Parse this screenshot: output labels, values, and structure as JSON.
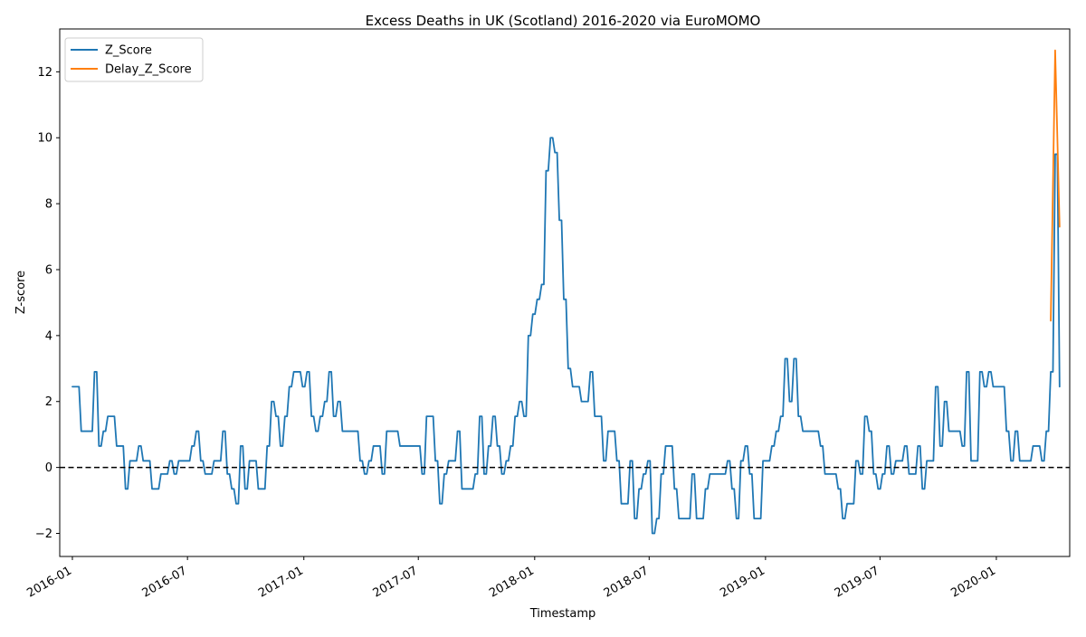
{
  "chart_data": {
    "type": "line",
    "title": "Excess Deaths in UK (Scotland) 2016-2020 via EuroMOMO",
    "xlabel": "Timestamp",
    "ylabel": "Z-score",
    "xlim": [
      "2015-12-12",
      "2020-04-26"
    ],
    "ylim": [
      -2.7,
      13.3
    ],
    "x_ticks": [
      "2016-01",
      "2016-07",
      "2017-01",
      "2017-07",
      "2018-01",
      "2018-07",
      "2019-01",
      "2019-07",
      "2020-01"
    ],
    "x_tick_dates": [
      "2016-01-01",
      "2016-07-01",
      "2017-01-01",
      "2017-07-01",
      "2018-01-01",
      "2018-07-01",
      "2019-01-01",
      "2019-07-01",
      "2020-01-01"
    ],
    "y_ticks": [
      -2,
      0,
      2,
      4,
      6,
      8,
      10,
      12
    ],
    "grid": false,
    "legend_position": "top-left",
    "reference_line": {
      "y": 0,
      "style": "dashed",
      "color": "#000000"
    },
    "series": [
      {
        "name": "Z_Score",
        "color": "#1f77b4",
        "points": [
          [
            "2016-01-01",
            2.45
          ],
          [
            "2016-01-08",
            2.45
          ],
          [
            "2016-01-15",
            1.1
          ],
          [
            "2016-01-22",
            1.1
          ],
          [
            "2016-01-29",
            1.1
          ],
          [
            "2016-02-05",
            2.9
          ],
          [
            "2016-02-12",
            0.65
          ],
          [
            "2016-02-19",
            1.1
          ],
          [
            "2016-02-26",
            1.55
          ],
          [
            "2016-03-04",
            1.55
          ],
          [
            "2016-03-11",
            0.65
          ],
          [
            "2016-03-18",
            0.65
          ],
          [
            "2016-03-25",
            -0.65
          ],
          [
            "2016-04-01",
            0.2
          ],
          [
            "2016-04-08",
            0.2
          ],
          [
            "2016-04-15",
            0.65
          ],
          [
            "2016-04-22",
            0.2
          ],
          [
            "2016-04-29",
            0.2
          ],
          [
            "2016-05-06",
            -0.65
          ],
          [
            "2016-05-13",
            -0.65
          ],
          [
            "2016-05-20",
            -0.2
          ],
          [
            "2016-05-27",
            -0.2
          ],
          [
            "2016-06-03",
            0.2
          ],
          [
            "2016-06-10",
            -0.2
          ],
          [
            "2016-06-17",
            0.2
          ],
          [
            "2016-06-24",
            0.2
          ],
          [
            "2016-07-01",
            0.2
          ],
          [
            "2016-07-08",
            0.65
          ],
          [
            "2016-07-15",
            1.1
          ],
          [
            "2016-07-22",
            0.2
          ],
          [
            "2016-07-29",
            -0.2
          ],
          [
            "2016-08-05",
            -0.2
          ],
          [
            "2016-08-12",
            0.2
          ],
          [
            "2016-08-19",
            0.2
          ],
          [
            "2016-08-26",
            1.1
          ],
          [
            "2016-09-02",
            -0.2
          ],
          [
            "2016-09-09",
            -0.65
          ],
          [
            "2016-09-16",
            -1.1
          ],
          [
            "2016-09-23",
            0.65
          ],
          [
            "2016-09-30",
            -0.65
          ],
          [
            "2016-10-07",
            0.2
          ],
          [
            "2016-10-14",
            0.2
          ],
          [
            "2016-10-21",
            -0.65
          ],
          [
            "2016-10-28",
            -0.65
          ],
          [
            "2016-11-04",
            0.65
          ],
          [
            "2016-11-11",
            2.0
          ],
          [
            "2016-11-18",
            1.55
          ],
          [
            "2016-11-25",
            0.65
          ],
          [
            "2016-12-02",
            1.55
          ],
          [
            "2016-12-09",
            2.45
          ],
          [
            "2016-12-16",
            2.9
          ],
          [
            "2016-12-23",
            2.9
          ],
          [
            "2016-12-30",
            2.45
          ],
          [
            "2017-01-06",
            2.9
          ],
          [
            "2017-01-13",
            1.55
          ],
          [
            "2017-01-20",
            1.1
          ],
          [
            "2017-01-27",
            1.55
          ],
          [
            "2017-02-03",
            2.0
          ],
          [
            "2017-02-10",
            2.9
          ],
          [
            "2017-02-17",
            1.55
          ],
          [
            "2017-02-24",
            2.0
          ],
          [
            "2017-03-03",
            1.1
          ],
          [
            "2017-03-10",
            1.1
          ],
          [
            "2017-03-17",
            1.1
          ],
          [
            "2017-03-24",
            1.1
          ],
          [
            "2017-03-31",
            0.2
          ],
          [
            "2017-04-07",
            -0.2
          ],
          [
            "2017-04-14",
            0.2
          ],
          [
            "2017-04-21",
            0.65
          ],
          [
            "2017-04-28",
            0.65
          ],
          [
            "2017-05-05",
            -0.2
          ],
          [
            "2017-05-12",
            1.1
          ],
          [
            "2017-05-19",
            1.1
          ],
          [
            "2017-05-26",
            1.1
          ],
          [
            "2017-06-02",
            0.65
          ],
          [
            "2017-06-09",
            0.65
          ],
          [
            "2017-06-16",
            0.65
          ],
          [
            "2017-06-23",
            0.65
          ],
          [
            "2017-06-30",
            0.65
          ],
          [
            "2017-07-07",
            -0.2
          ],
          [
            "2017-07-14",
            1.55
          ],
          [
            "2017-07-21",
            1.55
          ],
          [
            "2017-07-28",
            0.2
          ],
          [
            "2017-08-04",
            -1.1
          ],
          [
            "2017-08-11",
            -0.2
          ],
          [
            "2017-08-18",
            0.2
          ],
          [
            "2017-08-25",
            0.2
          ],
          [
            "2017-09-01",
            1.1
          ],
          [
            "2017-09-08",
            -0.65
          ],
          [
            "2017-09-15",
            -0.65
          ],
          [
            "2017-09-22",
            -0.65
          ],
          [
            "2017-09-29",
            -0.2
          ],
          [
            "2017-10-06",
            1.55
          ],
          [
            "2017-10-13",
            -0.2
          ],
          [
            "2017-10-20",
            0.65
          ],
          [
            "2017-10-27",
            1.55
          ],
          [
            "2017-11-03",
            0.65
          ],
          [
            "2017-11-10",
            -0.2
          ],
          [
            "2017-11-17",
            0.2
          ],
          [
            "2017-11-24",
            0.65
          ],
          [
            "2017-12-01",
            1.55
          ],
          [
            "2017-12-08",
            2.0
          ],
          [
            "2017-12-15",
            1.55
          ],
          [
            "2017-12-22",
            4.0
          ],
          [
            "2017-12-29",
            4.65
          ],
          [
            "2018-01-05",
            5.1
          ],
          [
            "2018-01-12",
            5.55
          ],
          [
            "2018-01-19",
            9.0
          ],
          [
            "2018-01-26",
            10.0
          ],
          [
            "2018-02-02",
            9.55
          ],
          [
            "2018-02-09",
            7.5
          ],
          [
            "2018-02-16",
            5.1
          ],
          [
            "2018-02-23",
            3.0
          ],
          [
            "2018-03-02",
            2.45
          ],
          [
            "2018-03-09",
            2.45
          ],
          [
            "2018-03-16",
            2.0
          ],
          [
            "2018-03-23",
            2.0
          ],
          [
            "2018-03-30",
            2.9
          ],
          [
            "2018-04-06",
            1.55
          ],
          [
            "2018-04-13",
            1.55
          ],
          [
            "2018-04-20",
            0.2
          ],
          [
            "2018-04-27",
            1.1
          ],
          [
            "2018-05-04",
            1.1
          ],
          [
            "2018-05-11",
            0.2
          ],
          [
            "2018-05-18",
            -1.1
          ],
          [
            "2018-05-25",
            -1.1
          ],
          [
            "2018-06-01",
            0.2
          ],
          [
            "2018-06-08",
            -1.55
          ],
          [
            "2018-06-15",
            -0.65
          ],
          [
            "2018-06-22",
            -0.2
          ],
          [
            "2018-06-29",
            0.2
          ],
          [
            "2018-07-06",
            -2.0
          ],
          [
            "2018-07-13",
            -1.55
          ],
          [
            "2018-07-20",
            -0.2
          ],
          [
            "2018-07-27",
            0.65
          ],
          [
            "2018-08-03",
            0.65
          ],
          [
            "2018-08-10",
            -0.65
          ],
          [
            "2018-08-17",
            -1.55
          ],
          [
            "2018-08-24",
            -1.55
          ],
          [
            "2018-08-31",
            -1.55
          ],
          [
            "2018-09-07",
            -0.2
          ],
          [
            "2018-09-14",
            -1.55
          ],
          [
            "2018-09-21",
            -1.55
          ],
          [
            "2018-09-28",
            -0.65
          ],
          [
            "2018-10-05",
            -0.2
          ],
          [
            "2018-10-12",
            -0.2
          ],
          [
            "2018-10-19",
            -0.2
          ],
          [
            "2018-10-26",
            -0.2
          ],
          [
            "2018-11-02",
            0.2
          ],
          [
            "2018-11-09",
            -0.65
          ],
          [
            "2018-11-16",
            -1.55
          ],
          [
            "2018-11-23",
            0.2
          ],
          [
            "2018-11-30",
            0.65
          ],
          [
            "2018-12-07",
            -0.2
          ],
          [
            "2018-12-14",
            -1.55
          ],
          [
            "2018-12-21",
            -1.55
          ],
          [
            "2018-12-28",
            0.2
          ],
          [
            "2019-01-04",
            0.2
          ],
          [
            "2019-01-11",
            0.65
          ],
          [
            "2019-01-18",
            1.1
          ],
          [
            "2019-01-25",
            1.55
          ],
          [
            "2019-02-01",
            3.3
          ],
          [
            "2019-02-08",
            2.0
          ],
          [
            "2019-02-15",
            3.3
          ],
          [
            "2019-02-22",
            1.55
          ],
          [
            "2019-03-01",
            1.1
          ],
          [
            "2019-03-08",
            1.1
          ],
          [
            "2019-03-15",
            1.1
          ],
          [
            "2019-03-22",
            1.1
          ],
          [
            "2019-03-29",
            0.65
          ],
          [
            "2019-04-05",
            -0.2
          ],
          [
            "2019-04-12",
            -0.2
          ],
          [
            "2019-04-19",
            -0.2
          ],
          [
            "2019-04-26",
            -0.65
          ],
          [
            "2019-05-03",
            -1.55
          ],
          [
            "2019-05-10",
            -1.1
          ],
          [
            "2019-05-17",
            -1.1
          ],
          [
            "2019-05-24",
            0.2
          ],
          [
            "2019-05-31",
            -0.2
          ],
          [
            "2019-06-07",
            1.55
          ],
          [
            "2019-06-14",
            1.1
          ],
          [
            "2019-06-21",
            -0.2
          ],
          [
            "2019-06-28",
            -0.65
          ],
          [
            "2019-07-05",
            -0.2
          ],
          [
            "2019-07-12",
            0.65
          ],
          [
            "2019-07-19",
            -0.2
          ],
          [
            "2019-07-26",
            0.2
          ],
          [
            "2019-08-02",
            0.2
          ],
          [
            "2019-08-09",
            0.65
          ],
          [
            "2019-08-16",
            -0.2
          ],
          [
            "2019-08-23",
            -0.2
          ],
          [
            "2019-08-30",
            0.65
          ],
          [
            "2019-09-06",
            -0.65
          ],
          [
            "2019-09-13",
            0.2
          ],
          [
            "2019-09-20",
            0.2
          ],
          [
            "2019-09-27",
            2.45
          ],
          [
            "2019-10-04",
            0.65
          ],
          [
            "2019-10-11",
            2.0
          ],
          [
            "2019-10-18",
            1.1
          ],
          [
            "2019-10-25",
            1.1
          ],
          [
            "2019-11-01",
            1.1
          ],
          [
            "2019-11-08",
            0.65
          ],
          [
            "2019-11-15",
            2.9
          ],
          [
            "2019-11-22",
            0.2
          ],
          [
            "2019-11-29",
            0.2
          ],
          [
            "2019-12-06",
            2.9
          ],
          [
            "2019-12-13",
            2.45
          ],
          [
            "2019-12-20",
            2.9
          ],
          [
            "2019-12-27",
            2.45
          ],
          [
            "2020-01-03",
            2.45
          ],
          [
            "2020-01-10",
            2.45
          ],
          [
            "2020-01-17",
            1.1
          ],
          [
            "2020-01-24",
            0.2
          ],
          [
            "2020-01-31",
            1.1
          ],
          [
            "2020-02-07",
            0.2
          ],
          [
            "2020-02-14",
            0.2
          ],
          [
            "2020-02-21",
            0.2
          ],
          [
            "2020-02-28",
            0.65
          ],
          [
            "2020-03-06",
            0.65
          ],
          [
            "2020-03-13",
            0.2
          ],
          [
            "2020-03-20",
            1.1
          ],
          [
            "2020-03-27",
            2.9
          ],
          [
            "2020-04-03",
            9.5
          ],
          [
            "2020-04-10",
            2.45
          ]
        ]
      },
      {
        "name": "Delay_Z_Score",
        "color": "#ff7f0e",
        "points": [
          [
            "2020-03-27",
            4.45
          ],
          [
            "2020-04-03",
            12.65
          ],
          [
            "2020-04-10",
            7.3
          ]
        ]
      }
    ]
  }
}
